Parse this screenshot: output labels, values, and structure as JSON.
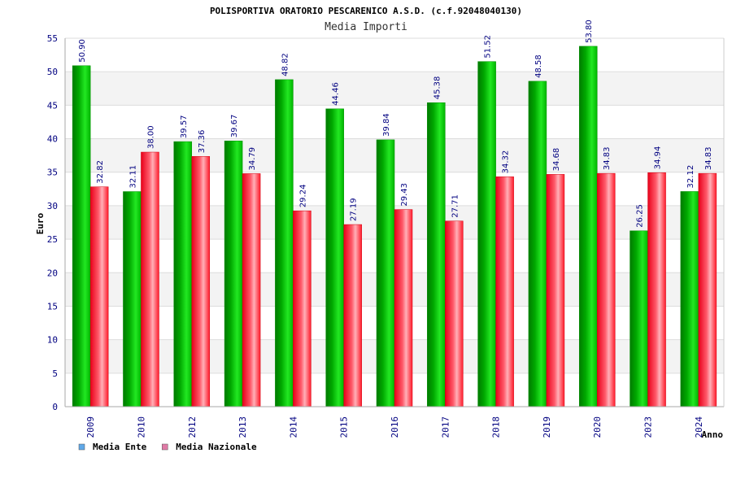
{
  "chart_data": {
    "type": "bar",
    "title": "POLISPORTIVA ORATORIO PESCARENICO A.S.D. (c.f.92048040130)",
    "subtitle": "Media Importi",
    "xlabel": "Anno",
    "ylabel": "Euro",
    "categories": [
      "2009",
      "2010",
      "2012",
      "2013",
      "2014",
      "2015",
      "2016",
      "2017",
      "2018",
      "2019",
      "2020",
      "2023",
      "2024"
    ],
    "series": [
      {
        "name": "Media Ente",
        "values": [
          50.9,
          32.11,
          39.57,
          39.67,
          48.82,
          44.46,
          39.84,
          45.38,
          51.52,
          48.58,
          53.8,
          26.25,
          32.12
        ],
        "color": "#00c000",
        "legend_color": "#5fa8e8"
      },
      {
        "name": "Media Nazionale",
        "values": [
          32.82,
          38.0,
          37.36,
          34.79,
          29.24,
          27.19,
          29.43,
          27.71,
          34.32,
          34.68,
          34.83,
          34.94,
          34.83
        ],
        "color": "#ff1a2a",
        "legend_color": "#e07aa6"
      }
    ],
    "ylim": [
      0,
      55
    ],
    "yticks": [
      0,
      5,
      10,
      15,
      20,
      25,
      30,
      35,
      40,
      45,
      50,
      55
    ],
    "grid": true,
    "legend": "bottom-left"
  }
}
